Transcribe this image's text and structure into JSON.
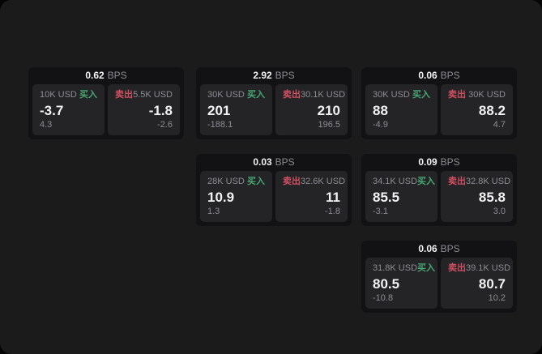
{
  "theme": {
    "page-bg": "#1b1b1c",
    "card-bg": "#121214",
    "panel-bg": "#242427",
    "text-primary": "#f2f2f3",
    "text-muted": "#8d8d92",
    "buy-color": "#46a672",
    "sell-color": "#cf5060"
  },
  "labels": {
    "buy": "买入",
    "sell": "卖出",
    "bps_unit": "BPS"
  },
  "cards": [
    {
      "bps": "0.62",
      "buy": {
        "amount": "10K USD",
        "price": "-3.7",
        "delta": "4.3"
      },
      "sell": {
        "amount": "5.5K USD",
        "price": "-1.8",
        "delta": "-2.6"
      }
    },
    {
      "bps": "2.92",
      "buy": {
        "amount": "30K USD",
        "price": "201",
        "delta": "-188.1"
      },
      "sell": {
        "amount": "30.1K USD",
        "price": "210",
        "delta": "196.5"
      }
    },
    {
      "bps": "0.06",
      "buy": {
        "amount": "30K USD",
        "price": "88",
        "delta": "-4.9"
      },
      "sell": {
        "amount": "30K USD",
        "price": "88.2",
        "delta": "4.7"
      }
    },
    {
      "bps": "0.03",
      "buy": {
        "amount": "28K USD",
        "price": "10.9",
        "delta": "1.3"
      },
      "sell": {
        "amount": "32.6K USD",
        "price": "11",
        "delta": "-1.8"
      }
    },
    {
      "bps": "0.09",
      "buy": {
        "amount": "34.1K USD",
        "price": "85.5",
        "delta": "-3.1"
      },
      "sell": {
        "amount": "32.8K USD",
        "price": "85.8",
        "delta": "3.0"
      }
    },
    {
      "bps": "0.06",
      "buy": {
        "amount": "31.8K USD",
        "price": "80.5",
        "delta": "-10.8"
      },
      "sell": {
        "amount": "39.1K USD",
        "price": "80.7",
        "delta": "10.2"
      }
    }
  ]
}
